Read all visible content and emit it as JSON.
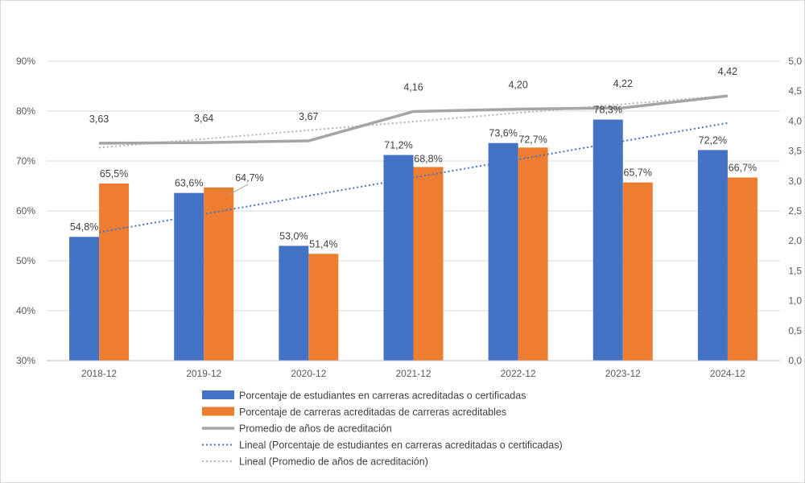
{
  "chart_data": {
    "type": "bar",
    "categories": [
      "2018-12",
      "2019-12",
      "2020-12",
      "2021-12",
      "2022-12",
      "2023-12",
      "2024-12"
    ],
    "y_left": {
      "range": [
        30,
        90
      ],
      "ticks": [
        30,
        40,
        50,
        60,
        70,
        80,
        90
      ],
      "tick_labels": [
        "30%",
        "40%",
        "50%",
        "60%",
        "70%",
        "80%",
        "90%"
      ]
    },
    "y_right": {
      "range": [
        0,
        5
      ],
      "ticks": [
        0,
        0.5,
        1,
        1.5,
        2,
        2.5,
        3,
        3.5,
        4,
        4.5,
        5
      ],
      "tick_labels": [
        "0,0",
        "0,5",
        "1,0",
        "1,5",
        "2,0",
        "2,5",
        "3,0",
        "3,5",
        "4,0",
        "4,5",
        "5,0"
      ]
    },
    "gridlines": true,
    "legend_position": "bottom",
    "series": [
      {
        "name": "Porcentaje de estudiantes en carreras acreditadas o certificadas",
        "type": "bar",
        "axis": "left",
        "color": "#4472c4",
        "values": [
          54.8,
          63.6,
          53.0,
          71.2,
          73.6,
          78.3,
          72.2
        ],
        "labels": [
          "54,8%",
          "63,6%",
          "53,0%",
          "71,2%",
          "73,6%",
          "78,3%",
          "72,2%"
        ]
      },
      {
        "name": "Porcentaje de carreras acreditadas de carreras acreditables",
        "type": "bar",
        "axis": "left",
        "color": "#ed7d31",
        "values": [
          65.5,
          64.7,
          51.4,
          68.8,
          72.7,
          65.7,
          66.7
        ],
        "labels": [
          "65,5%",
          "64,7%",
          "51,4%",
          "68,8%",
          "72,7%",
          "65,7%",
          "66,7%"
        ]
      },
      {
        "name": "Promedio de años de acreditación",
        "type": "line",
        "axis": "right",
        "color": "#a5a5a5",
        "values": [
          3.63,
          3.64,
          3.67,
          4.16,
          4.2,
          4.22,
          4.42
        ],
        "labels": [
          "3,63",
          "3,64",
          "3,67",
          "4,16",
          "4,20",
          "4,22",
          "4,42"
        ]
      },
      {
        "name": "Lineal (Porcentaje de estudiantes en carreras acreditadas o certificadas)",
        "type": "trendline",
        "axis": "left",
        "color": "#4472c4",
        "values": [
          54.8,
          63.6,
          53.0,
          71.2,
          73.6,
          78.3,
          72.2
        ]
      },
      {
        "name": "Lineal (Promedio de años de acreditación)",
        "type": "trendline",
        "axis": "right",
        "color": "#a5a5a5",
        "values": [
          3.63,
          3.64,
          3.67,
          4.16,
          4.2,
          4.22,
          4.42
        ]
      }
    ]
  }
}
